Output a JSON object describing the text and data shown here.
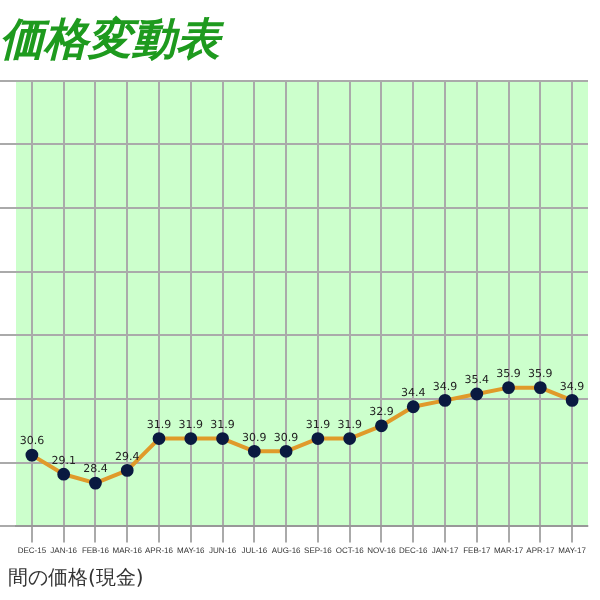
{
  "chart_data": {
    "type": "line",
    "title": "価格変動表",
    "annotations": [
      "間の価格(現金)"
    ],
    "categories": [
      "DEC-15",
      "JAN-16",
      "FEB-16",
      "MAR-16",
      "APR-16",
      "MAY-16",
      "JUN-16",
      "JUL-16",
      "AUG-16",
      "SEP-16",
      "OCT-16",
      "NOV-16",
      "DEC-16",
      "JAN-17",
      "FEB-17",
      "MAR-17",
      "APR-17",
      "MAY-17"
    ],
    "series": [
      {
        "color": "#e09a2a",
        "values": [
          30.6,
          29.1,
          28.4,
          29.4,
          31.9,
          31.9,
          31.9,
          30.9,
          30.9,
          31.9,
          31.9,
          32.9,
          34.4,
          34.9,
          35.4,
          35.9,
          35.9,
          34.9
        ]
      }
    ],
    "ylim": [
      25,
      60
    ],
    "yticks": [
      {
        "value": 25,
        "label": null
      },
      {
        "value": 30,
        "label": null
      },
      {
        "value": 35,
        "label": null
      },
      {
        "value": 40,
        "label": null
      },
      {
        "value": 45,
        "label": null
      },
      {
        "value": 50,
        "label": null
      },
      {
        "value": 55,
        "label": null
      },
      {
        "value": 60,
        "label": null
      }
    ],
    "tick_labels": "x",
    "grid": true,
    "marker": "circle",
    "line_style": "solid",
    "data_labels": true,
    "legend": false
  }
}
